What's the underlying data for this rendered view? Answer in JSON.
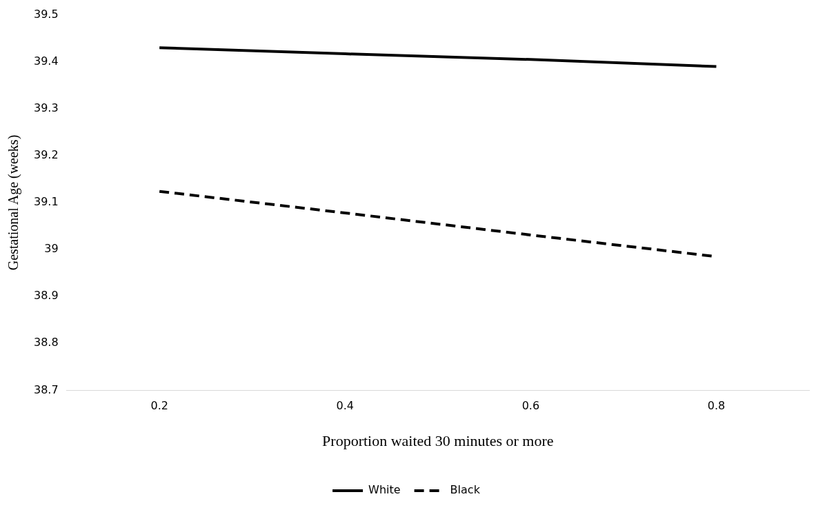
{
  "chart_data": {
    "type": "line",
    "xlabel": "Proportion waited 30 minutes or more",
    "ylabel": "Gestational Age (weeks)",
    "categories": [
      "0.2",
      "0.4",
      "0.6",
      "0.8"
    ],
    "series": [
      {
        "name": "White",
        "color": "#000000",
        "line_style": "solid",
        "values": [
          39.43,
          39.417,
          39.405,
          39.39
        ]
      },
      {
        "name": "Black",
        "color": "#000000",
        "line_style": "dashed",
        "values": [
          39.124,
          39.078,
          39.031,
          38.985
        ]
      }
    ],
    "ylim": [
      38.7,
      39.5
    ],
    "yticks": [
      38.7,
      38.8,
      38.9,
      39,
      39.1,
      39.2,
      39.3,
      39.4,
      39.5
    ],
    "grid": false,
    "legend": "bottom",
    "marker": "none"
  }
}
